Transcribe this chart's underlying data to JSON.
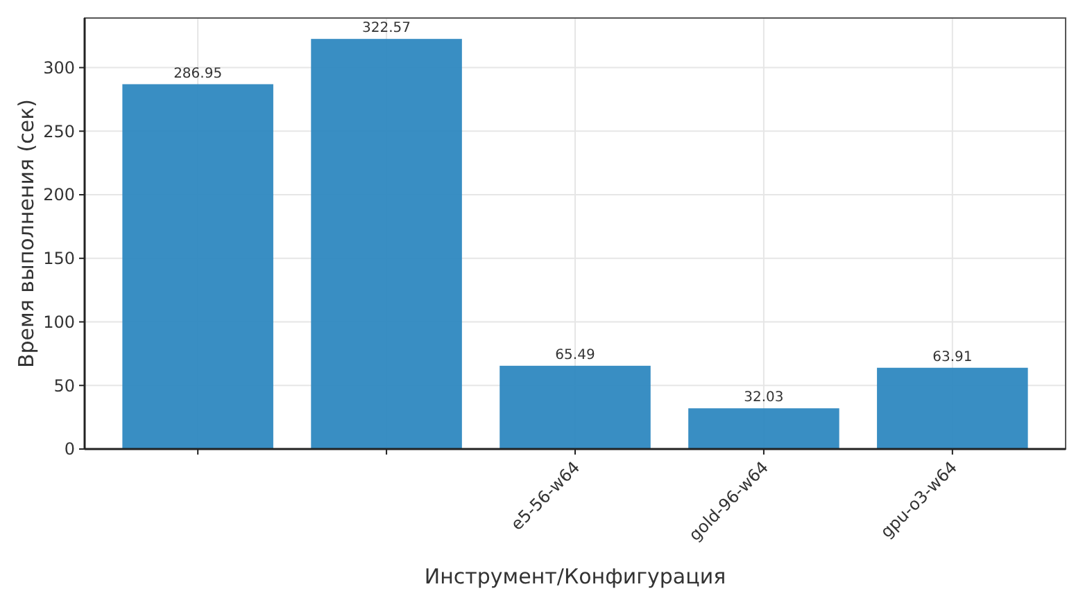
{
  "chart_data": {
    "type": "bar",
    "xlabel": "Инструмент/Конфигурация",
    "ylabel": "Время выполнения (сек)",
    "categories": [
      null,
      null,
      "e5-56-w64",
      "gold-96-w64",
      "gpu-o3-w64"
    ],
    "values": [
      286.95,
      322.57,
      65.49,
      32.03,
      63.91
    ],
    "color": "#2e88c0",
    "ylim": [
      0,
      339
    ],
    "yticks": [
      0,
      50,
      100,
      150,
      200,
      250,
      300
    ],
    "grid": true,
    "data_labels": true
  }
}
